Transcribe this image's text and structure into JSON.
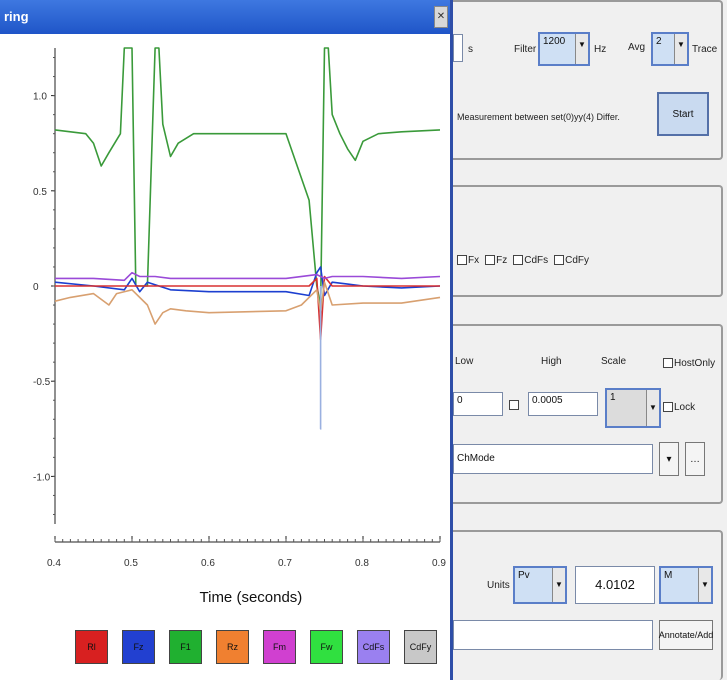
{
  "window": {
    "title": "ring"
  },
  "chart_data": {
    "type": "line",
    "xlabel": "Time (seconds)",
    "x_ticks": [
      "0.4",
      "0.5",
      "0.6",
      "0.7",
      "0.8",
      "0.9"
    ],
    "y_ticks": [
      "1.0",
      "0.5",
      "0",
      "-0.5",
      "-1.0"
    ],
    "xlim": [
      0.4,
      0.9
    ],
    "ylim": [
      -1.25,
      1.25
    ],
    "grid": false,
    "series": [
      {
        "color": "#3a9a3a",
        "x": [
          0.4,
          0.44,
          0.45,
          0.46,
          0.47,
          0.485,
          0.49,
          0.495,
          0.5,
          0.505,
          0.51,
          0.52,
          0.53,
          0.535,
          0.54,
          0.55,
          0.56,
          0.58,
          0.6,
          0.7,
          0.73,
          0.74,
          0.745,
          0.75,
          0.755,
          0.76,
          0.77,
          0.78,
          0.79,
          0.8,
          0.82,
          0.85,
          0.9
        ],
        "y": [
          0.82,
          0.8,
          0.75,
          0.63,
          0.7,
          0.8,
          1.25,
          1.25,
          1.25,
          0.0,
          0.0,
          0.0,
          1.25,
          1.25,
          0.85,
          0.68,
          0.75,
          0.8,
          0.8,
          0.8,
          0.45,
          0.0,
          -0.1,
          1.25,
          1.25,
          0.9,
          0.8,
          0.72,
          0.66,
          0.76,
          0.8,
          0.81,
          0.82
        ]
      },
      {
        "color": "#1c3fd0",
        "x": [
          0.4,
          0.45,
          0.49,
          0.5,
          0.51,
          0.52,
          0.55,
          0.6,
          0.7,
          0.73,
          0.74,
          0.745,
          0.75,
          0.76,
          0.78,
          0.8,
          0.85,
          0.9
        ],
        "y": [
          0.02,
          0.0,
          -0.02,
          0.04,
          -0.03,
          0.02,
          -0.02,
          -0.03,
          -0.03,
          -0.05,
          0.07,
          0.1,
          -0.05,
          0.02,
          0.01,
          0.0,
          -0.01,
          0.0
        ]
      },
      {
        "color": "#d83030",
        "x": [
          0.4,
          0.5,
          0.6,
          0.7,
          0.73,
          0.74,
          0.745,
          0.75,
          0.76,
          0.8,
          0.9
        ],
        "y": [
          0.0,
          0.0,
          0.0,
          0.0,
          0.0,
          0.04,
          -0.28,
          0.05,
          0.0,
          0.0,
          0.0
        ]
      },
      {
        "color": "#9a4ad8",
        "x": [
          0.4,
          0.45,
          0.49,
          0.5,
          0.51,
          0.53,
          0.55,
          0.6,
          0.65,
          0.7,
          0.74,
          0.75,
          0.76,
          0.8,
          0.85,
          0.9
        ],
        "y": [
          0.04,
          0.04,
          0.03,
          0.07,
          0.05,
          0.05,
          0.04,
          0.04,
          0.04,
          0.04,
          0.06,
          0.04,
          0.05,
          0.05,
          0.04,
          0.05
        ]
      },
      {
        "color": "#d8a070",
        "x": [
          0.4,
          0.42,
          0.45,
          0.47,
          0.48,
          0.5,
          0.52,
          0.53,
          0.54,
          0.55,
          0.57,
          0.6,
          0.7,
          0.72,
          0.74,
          0.745,
          0.75,
          0.76,
          0.8,
          0.85,
          0.9
        ],
        "y": [
          -0.08,
          -0.06,
          -0.04,
          -0.1,
          -0.04,
          -0.02,
          -0.1,
          -0.2,
          -0.14,
          -0.12,
          -0.13,
          -0.14,
          -0.13,
          -0.1,
          -0.02,
          -0.14,
          0.02,
          -0.1,
          -0.09,
          -0.09,
          -0.06
        ]
      },
      {
        "color": "#9ab0e0",
        "x": [
          0.745,
          0.745,
          0.746
        ],
        "y": [
          0.0,
          -0.75,
          -0.75
        ]
      }
    ]
  },
  "channel_buttons": [
    {
      "label": "Rl",
      "color": "#d82020"
    },
    {
      "label": "Fz",
      "color": "#2240d0"
    },
    {
      "label": "F1",
      "color": "#20b030"
    },
    {
      "label": "Rz",
      "color": "#f08030"
    },
    {
      "label": "Fm",
      "color": "#d040d0"
    },
    {
      "label": "Fw",
      "color": "#30e040"
    },
    {
      "label": "CdFs",
      "color": "#9a80f0"
    },
    {
      "label": "CdFy",
      "color": "#c8c8c8"
    }
  ],
  "panel1": {
    "suffix": "s",
    "filter_label": "Filter",
    "filter_value": "1200",
    "filter_unit": "Hz",
    "avg_label": "Avg",
    "avg_value": "2",
    "avg_unit": "Trace",
    "description": "Measurement between set(0)yy(4) Differ.",
    "start_button": "Start"
  },
  "panel2": {
    "checkbox_items": [
      "Fx",
      "Fz",
      "CdFs",
      "CdFy"
    ]
  },
  "panel3": {
    "low_label": "Low",
    "high_label": "High",
    "scale_label": "Scale",
    "highest_checkbox": "HostOnly",
    "scale_checkbox": "Lock",
    "low_value": "0",
    "high_value": "0.0005",
    "scale_value": "1",
    "channel_select": "ChMode"
  },
  "panel4": {
    "label": "Units",
    "units_value": "Pv",
    "value": "4.0102",
    "mode_value": "M",
    "comment_placeholder": "",
    "apply_button": "Annotate/Add"
  }
}
